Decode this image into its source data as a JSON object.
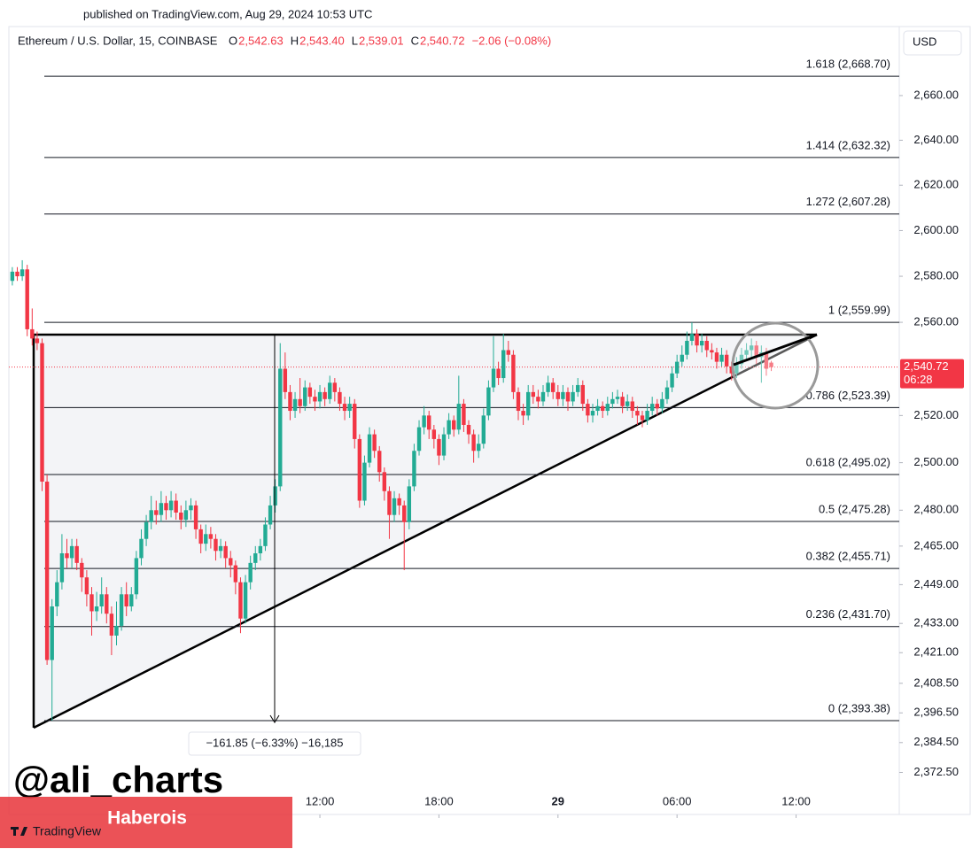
{
  "chart_data": {
    "type": "candlestick",
    "published": "published on TradingView.com, Aug 29, 2024 10:53 UTC",
    "title": "Ethereum / U.S. Dollar, 15, COINBASE",
    "legend": [
      {
        "key": "O",
        "value": "2,542.63"
      },
      {
        "key": "H",
        "value": "2,543.40"
      },
      {
        "key": "L",
        "value": "2,539.01"
      },
      {
        "key": "C",
        "value": "2,540.72"
      }
    ],
    "change": "−2.06 (−0.08%)",
    "currency": "USD",
    "log": true,
    "up_color": "#22ab94",
    "down_color": "#f23645",
    "ylim": [
      2366.3,
      2691.2
    ],
    "yticks": [
      {
        "value": 2660,
        "label": "2,660.00"
      },
      {
        "value": 2640,
        "label": "2,640.00"
      },
      {
        "value": 2620,
        "label": "2,620.00"
      },
      {
        "value": 2600,
        "label": "2,600.00"
      },
      {
        "value": 2580,
        "label": "2,580.00"
      },
      {
        "value": 2560,
        "label": "2,560.00"
      },
      {
        "value": 2520,
        "label": "2,520.00"
      },
      {
        "value": 2500,
        "label": "2,500.00"
      },
      {
        "value": 2480,
        "label": "2,480.00"
      },
      {
        "value": 2465,
        "label": "2,465.00"
      },
      {
        "value": 2449,
        "label": "2,449.00"
      },
      {
        "value": 2433,
        "label": "2,433.00"
      },
      {
        "value": 2421,
        "label": "2,421.00"
      },
      {
        "value": 2408.5,
        "label": "2,408.50"
      },
      {
        "value": 2396.5,
        "label": "2,396.50"
      },
      {
        "value": 2384.5,
        "label": "2,384.50"
      },
      {
        "value": 2372.5,
        "label": "2,372.50"
      }
    ],
    "xlim": [
      -0.7,
      178.8
    ],
    "xticks": [
      {
        "value": 62,
        "label": "12:00"
      },
      {
        "value": 86,
        "label": "18:00"
      },
      {
        "value": 110,
        "label": "29"
      },
      {
        "value": 134,
        "label": "06:00"
      },
      {
        "value": 158,
        "label": "12:00"
      }
    ],
    "fib_levels": [
      {
        "label": "1.618 (2,668.70)",
        "value": 2668.7
      },
      {
        "label": "1.414 (2,632.32)",
        "value": 2632.32
      },
      {
        "label": "1.272 (2,607.28)",
        "value": 2607.28
      },
      {
        "label": "1 (2,559.99)",
        "value": 2559.99
      },
      {
        "label": "0.786 (2,523.39)",
        "value": 2523.39
      },
      {
        "label": "0.618 (2,495.02)",
        "value": 2495.02
      },
      {
        "label": "0.5 (2,475.28)",
        "value": 2475.28
      },
      {
        "label": "0.382 (2,455.71)",
        "value": 2455.71
      },
      {
        "label": "0.236 (2,431.70)",
        "value": 2431.7
      },
      {
        "label": "0 (2,393.38)",
        "value": 2393.38
      }
    ],
    "last_price": {
      "value": 2540.72,
      "label": "2,540.72",
      "countdown": "06:28"
    },
    "measure": "−161.85 (−6.33%) −16,185",
    "watermark": "@ali_charts",
    "banner": "Haberois",
    "brand": "TradingView",
    "open": [
      2578,
      2582,
      2580,
      2583,
      2557,
      2553,
      2551,
      2492,
      2418,
      2440,
      2450,
      2462,
      2460,
      2465,
      2458,
      2452,
      2445,
      2438,
      2440,
      2445,
      2437,
      2428,
      2432,
      2445,
      2440,
      2445,
      2460,
      2468,
      2475,
      2480,
      2478,
      2483,
      2480,
      2484,
      2479,
      2476,
      2480,
      2482,
      2472,
      2466,
      2470,
      2468,
      2463,
      2465,
      2460,
      2457,
      2450,
      2435,
      2450,
      2458,
      2462,
      2465,
      2474,
      2482,
      2490,
      2540,
      2530,
      2522,
      2527,
      2524,
      2532,
      2528,
      2526,
      2530,
      2527,
      2534,
      2530,
      2525,
      2522,
      2525,
      2510,
      2484,
      2500,
      2512,
      2505,
      2496,
      2488,
      2478,
      2485,
      2482,
      2475,
      2490,
      2505,
      2515,
      2520,
      2514,
      2510,
      2503,
      2512,
      2518,
      2514,
      2525,
      2516,
      2512,
      2505,
      2508,
      2520,
      2532,
      2540,
      2536,
      2548,
      2546,
      2530,
      2522,
      2520,
      2530,
      2528,
      2526,
      2530,
      2534,
      2530,
      2527,
      2530,
      2526,
      2530,
      2533,
      2525,
      2520,
      2522,
      2524,
      2522,
      2525,
      2527,
      2528,
      2524,
      2526,
      2522,
      2520,
      2518,
      2522,
      2525,
      2523,
      2527,
      2532,
      2538,
      2543,
      2546,
      2552,
      2555,
      2550,
      2552,
      2548,
      2547,
      2543,
      2546,
      2541,
      2538,
      2542,
      2546,
      2548,
      2550,
      2545,
      2547,
      2542.63
    ],
    "high": [
      2584,
      2584,
      2587,
      2585,
      2566,
      2556,
      2553,
      2495,
      2443,
      2455,
      2470,
      2468,
      2468,
      2468,
      2460,
      2455,
      2448,
      2446,
      2452,
      2448,
      2440,
      2442,
      2448,
      2450,
      2448,
      2463,
      2472,
      2478,
      2486,
      2484,
      2488,
      2486,
      2488,
      2487,
      2482,
      2484,
      2485,
      2484,
      2474,
      2474,
      2473,
      2470,
      2468,
      2467,
      2463,
      2459,
      2452,
      2453,
      2461,
      2465,
      2468,
      2477,
      2486,
      2493,
      2551,
      2547,
      2533,
      2530,
      2536,
      2535,
      2534,
      2531,
      2533,
      2532,
      2537,
      2536,
      2532,
      2528,
      2528,
      2527,
      2512,
      2503,
      2515,
      2514,
      2507,
      2498,
      2490,
      2488,
      2487,
      2484,
      2493,
      2508,
      2518,
      2524,
      2522,
      2516,
      2512,
      2515,
      2521,
      2520,
      2537,
      2527,
      2518,
      2514,
      2512,
      2523,
      2535,
      2554,
      2543,
      2555,
      2552,
      2548,
      2532,
      2525,
      2533,
      2533,
      2531,
      2533,
      2537,
      2536,
      2533,
      2533,
      2532,
      2533,
      2536,
      2535,
      2527,
      2525,
      2527,
      2526,
      2528,
      2530,
      2531,
      2530,
      2529,
      2528,
      2524,
      2522,
      2525,
      2528,
      2527,
      2530,
      2535,
      2541,
      2546,
      2550,
      2556,
      2559.99,
      2557,
      2555,
      2554,
      2551,
      2549,
      2549,
      2548,
      2543,
      2545,
      2549,
      2551,
      2553,
      2552,
      2550,
      2549,
      2543.4
    ],
    "low": [
      2576,
      2578,
      2578,
      2554,
      2550,
      2548,
      2488,
      2416,
      2393.38,
      2436,
      2447,
      2456,
      2456,
      2455,
      2446,
      2440,
      2428,
      2434,
      2437,
      2433,
      2420,
      2424,
      2430,
      2436,
      2438,
      2443,
      2457,
      2465,
      2472,
      2474,
      2475,
      2476,
      2477,
      2476,
      2472,
      2473,
      2476,
      2468,
      2462,
      2463,
      2464,
      2459,
      2460,
      2456,
      2452,
      2445,
      2429,
      2433,
      2447,
      2455,
      2459,
      2463,
      2472,
      2479,
      2488,
      2527,
      2518,
      2519,
      2521,
      2522,
      2525,
      2522,
      2523,
      2524,
      2525,
      2526,
      2522,
      2518,
      2519,
      2506,
      2481,
      2482,
      2498,
      2502,
      2492,
      2484,
      2468,
      2475,
      2478,
      2455,
      2472,
      2488,
      2503,
      2512,
      2510,
      2506,
      2499,
      2501,
      2510,
      2511,
      2512,
      2513,
      2508,
      2500,
      2502,
      2506,
      2518,
      2530,
      2533,
      2534,
      2543,
      2527,
      2518,
      2516,
      2518,
      2525,
      2523,
      2524,
      2528,
      2527,
      2524,
      2524,
      2522,
      2524,
      2528,
      2522,
      2517,
      2517,
      2520,
      2519,
      2520,
      2523,
      2525,
      2521,
      2522,
      2519,
      2516,
      2515,
      2516,
      2520,
      2520,
      2521,
      2525,
      2530,
      2536,
      2541,
      2544,
      2550,
      2547,
      2547,
      2545,
      2544,
      2540,
      2541,
      2538,
      2535,
      2536,
      2540,
      2544,
      2545,
      2542,
      2534,
      2537,
      2539.01
    ],
    "close": [
      2582,
      2580,
      2583,
      2557,
      2553,
      2551,
      2492,
      2418,
      2440,
      2450,
      2462,
      2460,
      2465,
      2458,
      2452,
      2445,
      2438,
      2440,
      2445,
      2437,
      2428,
      2432,
      2445,
      2440,
      2445,
      2460,
      2468,
      2475,
      2480,
      2478,
      2483,
      2480,
      2484,
      2479,
      2476,
      2480,
      2482,
      2472,
      2466,
      2470,
      2468,
      2463,
      2465,
      2460,
      2457,
      2450,
      2435,
      2450,
      2458,
      2462,
      2465,
      2474,
      2482,
      2490,
      2540,
      2530,
      2522,
      2527,
      2524,
      2532,
      2528,
      2526,
      2530,
      2527,
      2534,
      2530,
      2525,
      2522,
      2525,
      2510,
      2484,
      2500,
      2512,
      2505,
      2496,
      2488,
      2478,
      2485,
      2482,
      2475,
      2490,
      2505,
      2515,
      2520,
      2514,
      2510,
      2503,
      2512,
      2518,
      2514,
      2525,
      2516,
      2512,
      2505,
      2508,
      2520,
      2532,
      2540,
      2536,
      2548,
      2546,
      2530,
      2522,
      2520,
      2530,
      2528,
      2526,
      2530,
      2534,
      2530,
      2527,
      2530,
      2526,
      2530,
      2533,
      2525,
      2520,
      2522,
      2524,
      2522,
      2525,
      2527,
      2528,
      2524,
      2526,
      2522,
      2520,
      2518,
      2522,
      2525,
      2523,
      2527,
      2532,
      2538,
      2543,
      2546,
      2552,
      2555,
      2550,
      2552,
      2548,
      2547,
      2543,
      2546,
      2541,
      2538,
      2542,
      2546,
      2548,
      2550,
      2545,
      2547,
      2540,
      2540.72
    ]
  }
}
